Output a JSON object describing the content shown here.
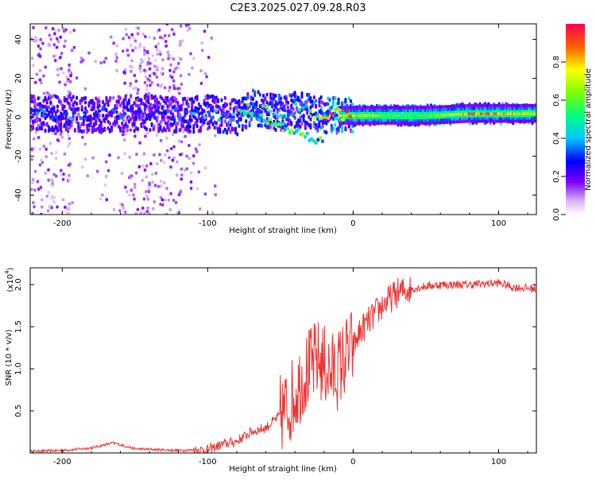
{
  "title": "C2E3.2025.027.09.28.R03",
  "chart_data": [
    {
      "type": "heatmap",
      "name": "spectrogram",
      "xlabel": "Height of straight line (km)",
      "ylabel": "Frequency (Hz)",
      "xlim": [
        -222,
        126
      ],
      "ylim": [
        -50,
        48
      ],
      "x_ticks": [
        -200,
        -100,
        0,
        100
      ],
      "x_tick_labels": [
        "-200",
        "-100",
        "0",
        "100"
      ],
      "y_ticks": [
        -40,
        -20,
        0,
        20,
        40
      ],
      "y_tick_labels": [
        "-40",
        "-20",
        "0",
        "20",
        "40"
      ],
      "colorbar": {
        "label": "Normalized spectral amplitude",
        "range": [
          0,
          1
        ],
        "ticks": [
          0.0,
          0.2,
          0.4,
          0.6,
          0.8
        ],
        "tick_labels": [
          "0.0",
          "0.2",
          "0.4",
          "0.6",
          "0.8"
        ]
      },
      "ridge_x": [
        -220,
        -200,
        -180,
        -160,
        -140,
        -120,
        -100,
        -80,
        -70,
        -60,
        -50,
        -40,
        -30,
        -20,
        -10,
        0,
        20,
        50,
        80,
        100,
        126
      ],
      "ridge_freq": [
        2,
        2,
        1,
        2,
        2,
        1,
        2,
        0,
        5,
        3,
        2,
        4,
        3,
        1,
        1,
        1,
        1,
        1,
        2,
        2,
        2
      ],
      "ridge_amplitude": [
        0.25,
        0.28,
        0.25,
        0.25,
        0.22,
        0.25,
        0.3,
        0.35,
        0.4,
        0.4,
        0.38,
        0.4,
        0.45,
        0.6,
        0.7,
        0.75,
        0.6,
        0.55,
        0.85,
        0.8,
        0.7
      ]
    },
    {
      "type": "line",
      "name": "snr",
      "xlabel": "Height of straight line (km)",
      "ylabel": "SNR (10 * v/v)",
      "multiplier_label": "(x10",
      "multiplier_exp": "4",
      "multiplier_close": ")",
      "xlim": [
        -222,
        126
      ],
      "ylim": [
        0,
        2.2
      ],
      "x_ticks": [
        -200,
        -100,
        0,
        100
      ],
      "x_tick_labels": [
        "-200",
        "-100",
        "0",
        "100"
      ],
      "y_ticks": [
        0.5,
        1.0,
        1.5,
        2.0
      ],
      "y_tick_labels": [
        "0.5",
        "1.0",
        "1.5",
        "2.0"
      ],
      "color": "#ee3333",
      "x": [
        -222,
        -200,
        -180,
        -165,
        -150,
        -120,
        -100,
        -90,
        -80,
        -70,
        -60,
        -50,
        -45,
        -40,
        -35,
        -30,
        -25,
        -20,
        -15,
        -10,
        -5,
        0,
        5,
        10,
        20,
        30,
        40,
        50,
        60,
        80,
        100,
        110,
        126
      ],
      "y": [
        0.02,
        0.03,
        0.06,
        0.12,
        0.05,
        0.03,
        0.04,
        0.1,
        0.14,
        0.25,
        0.3,
        0.45,
        0.55,
        0.7,
        0.9,
        1.0,
        1.1,
        1.05,
        0.95,
        1.0,
        1.15,
        1.25,
        1.45,
        1.55,
        1.75,
        1.9,
        1.95,
        1.98,
        2.0,
        2.0,
        2.02,
        1.97,
        1.95
      ]
    }
  ]
}
